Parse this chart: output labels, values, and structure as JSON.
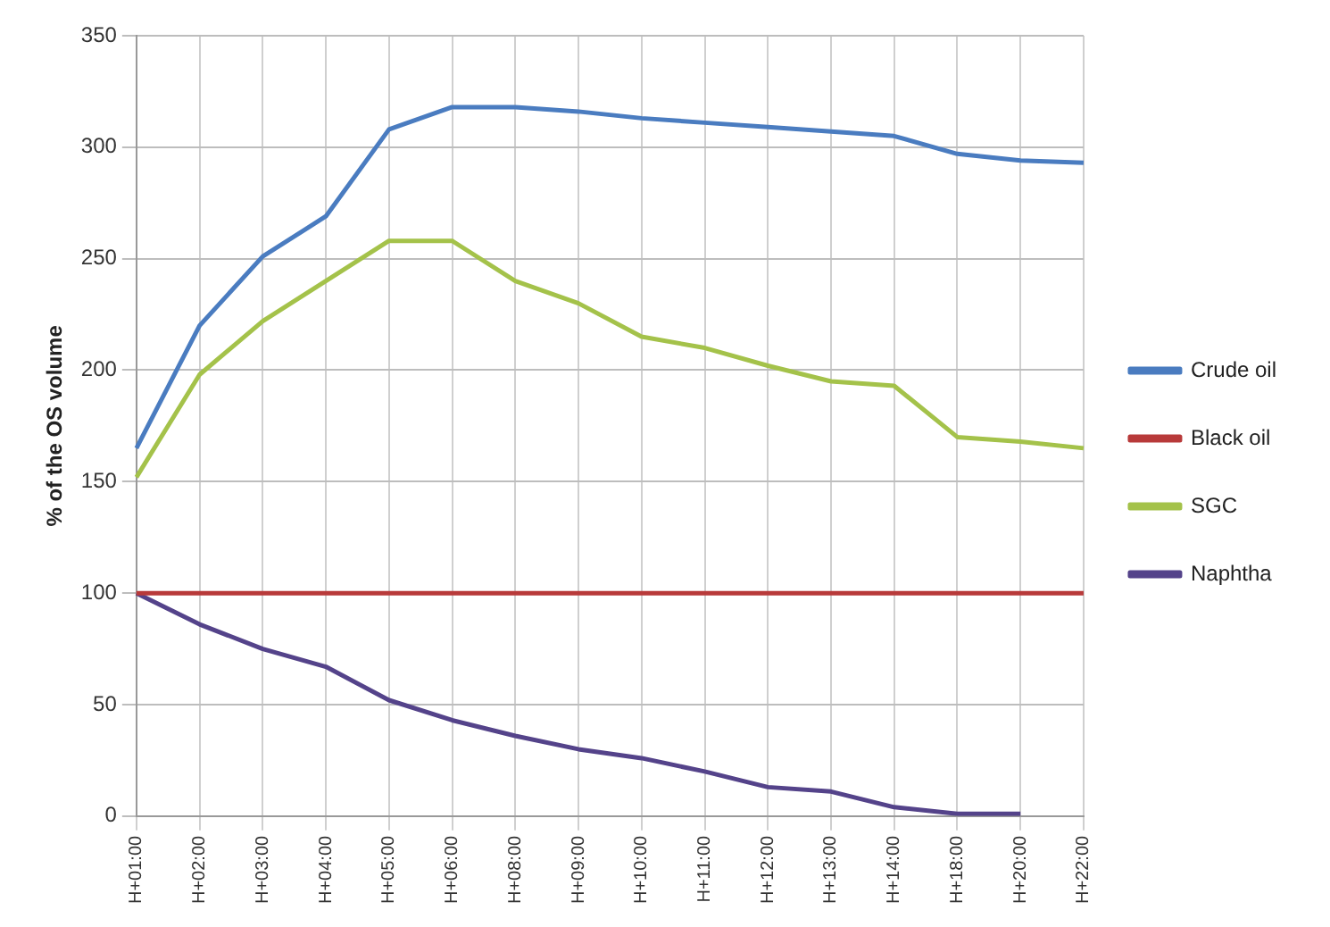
{
  "chart_data": {
    "type": "line",
    "ylabel": "% of the OS volume",
    "categories": [
      "H+01:00",
      "H+02:00",
      "H+03:00",
      "H+04:00",
      "H+05:00",
      "H+06:00",
      "H+08:00",
      "H+09:00",
      "H+10:00",
      "H+11:00",
      "H+12:00",
      "H+13:00",
      "H+14:00",
      "H+18:00",
      "H+20:00",
      "H+22:00"
    ],
    "series": [
      {
        "name": "Crude oil",
        "color": "#4a7cc0",
        "values": [
          165,
          220,
          251,
          269,
          308,
          318,
          318,
          316,
          313,
          311,
          309,
          307,
          305,
          297,
          294,
          293
        ]
      },
      {
        "name": "Black oil",
        "color": "#b83a3a",
        "values": [
          100,
          100,
          100,
          100,
          100,
          100,
          100,
          100,
          100,
          100,
          100,
          100,
          100,
          100,
          100,
          100
        ]
      },
      {
        "name": "SGC",
        "color": "#a4c24a",
        "values": [
          152,
          198,
          222,
          240,
          258,
          258,
          240,
          230,
          215,
          210,
          202,
          195,
          193,
          170,
          168,
          165
        ]
      },
      {
        "name": "Naphtha",
        "color": "#54438a",
        "values": [
          100,
          86,
          75,
          67,
          52,
          43,
          36,
          30,
          26,
          20,
          13,
          11,
          4,
          1,
          1,
          null
        ]
      }
    ],
    "ylim": [
      0,
      350
    ],
    "yticks": [
      0,
      50,
      100,
      150,
      200,
      250,
      300,
      350
    ],
    "grid": true,
    "legend": "right",
    "marker": "none",
    "line_style": "solid"
  }
}
